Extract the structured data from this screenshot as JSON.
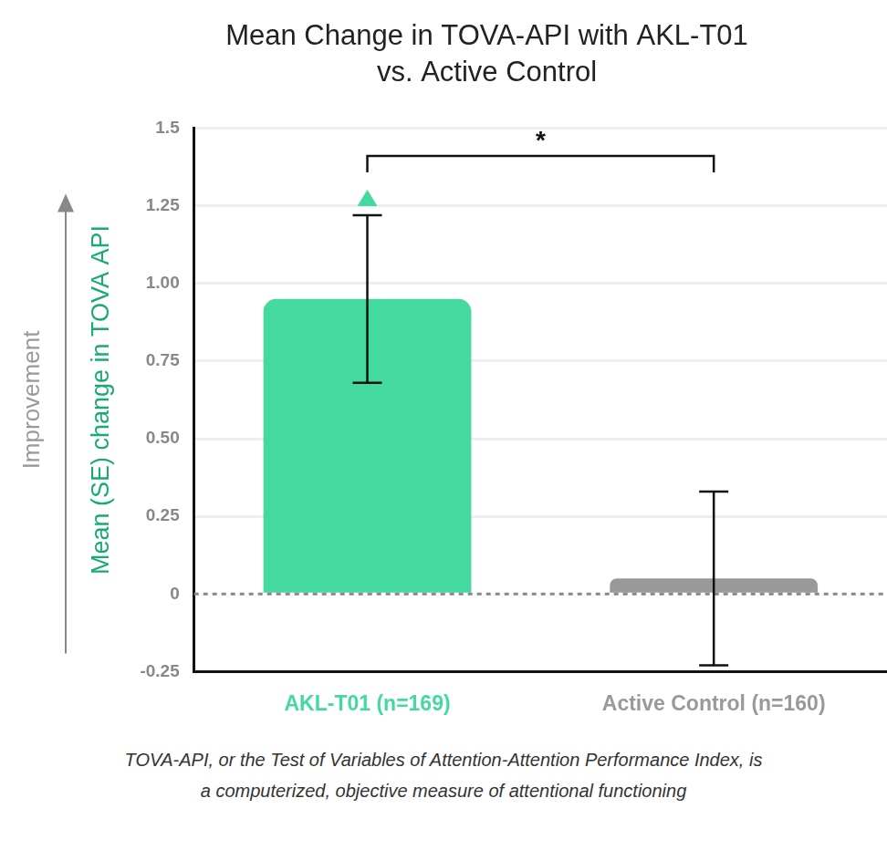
{
  "chart_data": {
    "type": "bar",
    "title": [
      "Mean Change in TOVA-API with AKL-T01",
      "vs. Active Control"
    ],
    "y_label": "Mean (SE) change in TOVA API",
    "improvement_label": "Improvement",
    "categories": [
      "AKL-T01 (n=169)",
      "Active Control (n=160)"
    ],
    "values": [
      0.95,
      0.05
    ],
    "errors": [
      0.27,
      0.28
    ],
    "colors": [
      "#44da9f",
      "#999999"
    ],
    "ylim": [
      -0.25,
      1.5
    ],
    "yticks": [
      -0.25,
      0,
      0.25,
      {
        "value": 0.5,
        "label": "0.50"
      },
      0.75,
      {
        "value": 1,
        "label": "1.00"
      },
      1.25,
      1.5
    ],
    "grid": true,
    "significance": {
      "label": "*",
      "between": [
        "AKL-T01 (n=169)",
        "Active Control (n=160)"
      ]
    },
    "footnote": "TOVA-API, or the Test of Variables of Attention-Attention Performance Index, is a computerized, objective measure of attentional functioning"
  }
}
